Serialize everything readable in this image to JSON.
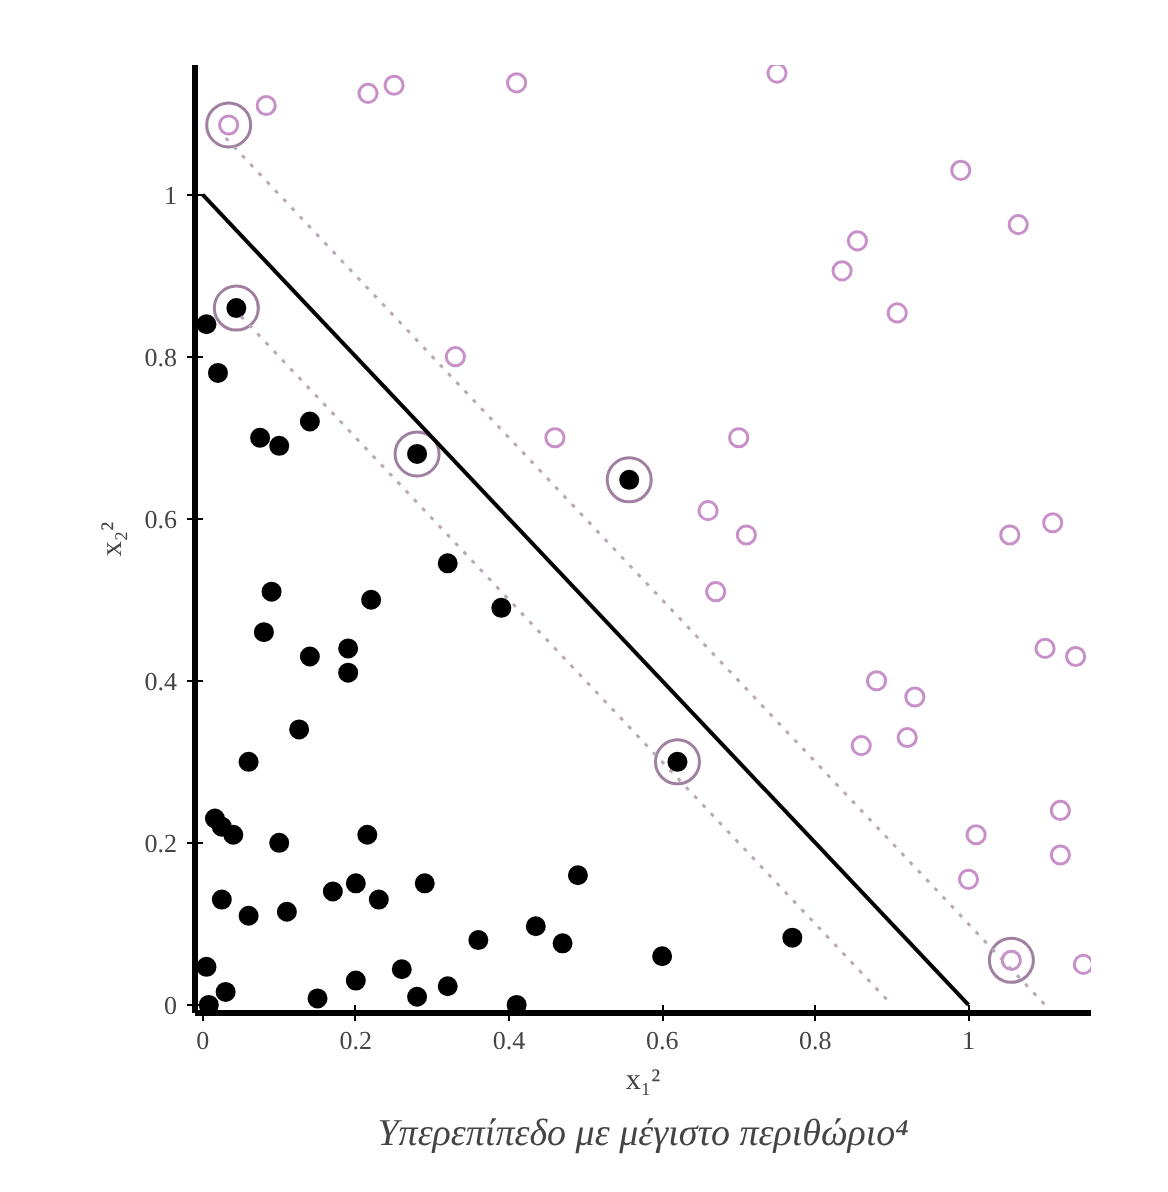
{
  "chart_data": {
    "type": "scatter",
    "xlabel": "x₁²",
    "ylabel": "x₂²",
    "annotations": [
      "Υπερεπίπεδο με μέγιστο περιθώριο⁴"
    ],
    "xlim": [
      -0.01,
      1.16
    ],
    "ylim": [
      -0.01,
      1.16
    ],
    "xticks": [
      0,
      0.2,
      0.4,
      0.6,
      0.8,
      1
    ],
    "yticks": [
      0,
      0.2,
      0.4,
      0.6,
      0.8,
      1
    ],
    "grid": false,
    "series": [
      {
        "color": "#000000",
        "marker": "circle",
        "x": [
          0.044,
          0.005,
          0.02,
          0.075,
          0.1,
          0.14,
          0.28,
          0.32,
          0.39,
          0.09,
          0.08,
          0.22,
          0.14,
          0.19,
          0.19,
          0.126,
          0.06,
          0.016,
          0.025,
          0.04,
          0.1,
          0.215,
          0.025,
          0.06,
          0.11,
          0.17,
          0.2,
          0.23,
          0.29,
          0.49,
          0.36,
          0.435,
          0.47,
          0.26,
          0.2,
          0.32,
          0.15,
          0.28,
          0.41,
          0.005,
          0.008,
          0.03,
          0.6,
          0.77,
          0.62,
          0.557
        ],
        "values": [
          0.86,
          0.84,
          0.78,
          0.7,
          0.69,
          0.72,
          0.68,
          0.545,
          0.49,
          0.51,
          0.46,
          0.5,
          0.43,
          0.44,
          0.41,
          0.34,
          0.3,
          0.23,
          0.22,
          0.21,
          0.2,
          0.21,
          0.13,
          0.11,
          0.115,
          0.14,
          0.15,
          0.13,
          0.15,
          0.16,
          0.08,
          0.097,
          0.076,
          0.044,
          0.03,
          0.023,
          0.008,
          0.01,
          0.0,
          0.047,
          0.0,
          0.016,
          0.06,
          0.083,
          0.3,
          0.648
        ]
      },
      {
        "type": "bubble",
        "color": "#c890c8",
        "marker": "circle",
        "x": [
          0.034,
          0.083,
          0.216,
          0.25,
          0.41,
          0.33,
          0.46,
          0.75,
          0.99,
          1.065,
          0.855,
          0.835,
          0.907,
          0.7,
          0.66,
          0.71,
          1.054,
          1.11,
          0.67,
          1.1,
          1.14,
          0.88,
          0.93,
          0.86,
          0.92,
          1.12,
          1.12,
          1.01,
          1.0,
          1.056,
          1.15
        ],
        "values": [
          1.086,
          1.11,
          1.125,
          1.135,
          1.138,
          0.8,
          0.7,
          1.15,
          1.03,
          0.963,
          0.943,
          0.906,
          0.854,
          0.7,
          0.61,
          0.58,
          0.58,
          0.595,
          0.51,
          0.44,
          0.43,
          0.4,
          0.38,
          0.32,
          0.33,
          0.24,
          0.185,
          0.21,
          0.155,
          0.055,
          0.05
        ],
        "sizes": [
          0.17,
          0.17,
          0.17,
          0.17,
          0.17,
          0.17,
          0.17,
          0.17,
          0.17,
          0.17,
          0.17,
          0.17,
          0.17,
          0.17,
          0.17,
          0.17,
          0.17,
          0.17,
          0.17,
          0.17,
          0.17,
          0.17,
          0.17,
          0.17,
          0.17,
          0.17,
          0.17,
          0.17,
          0.17,
          0.17,
          0.17
        ]
      },
      {
        "type": "bubble",
        "color": "#a080a0",
        "marker": "circle",
        "x": [
          0.034,
          0.044,
          0.28,
          0.557,
          0.62,
          1.056
        ],
        "values": [
          1.086,
          0.86,
          0.68,
          0.648,
          0.3,
          0.055
        ],
        "sizes": [
          1,
          1,
          1,
          1,
          1,
          1
        ]
      },
      {
        "type": "line",
        "color": "#000000",
        "line_style": "solid",
        "marker": "none",
        "x": [
          0,
          1
        ],
        "values": [
          1,
          0
        ]
      },
      {
        "type": "line",
        "color": "#b8a8b8",
        "line_style": "dotted",
        "marker": "none",
        "x": [
          0.03,
          1.1
        ],
        "values": [
          1.07,
          0
        ]
      },
      {
        "type": "line",
        "color": "#b8a8b8",
        "line_style": "dotted",
        "marker": "none",
        "x": [
          0.05,
          0.9
        ],
        "values": [
          0.85,
          0
        ]
      }
    ]
  }
}
